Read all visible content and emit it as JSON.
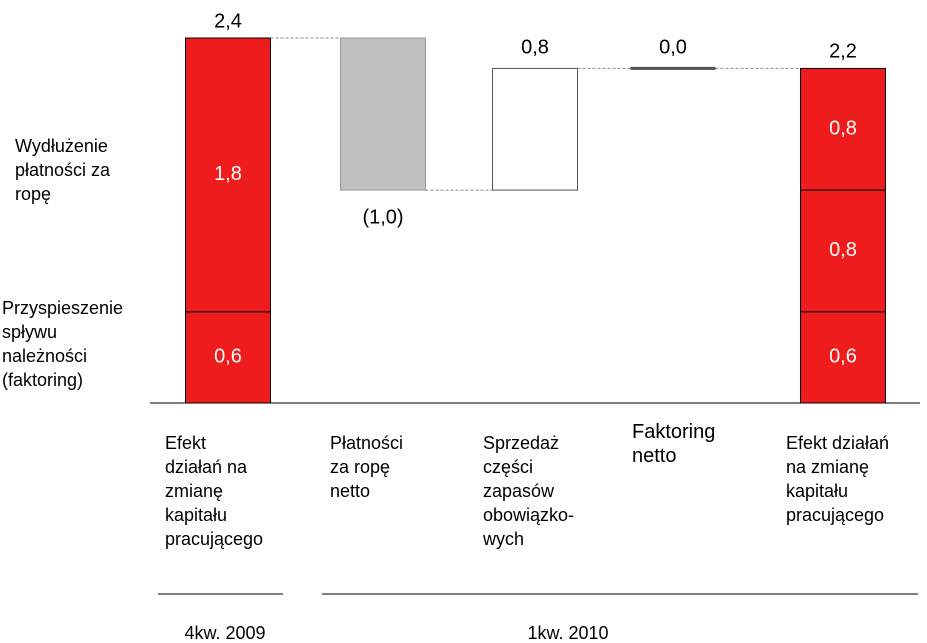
{
  "chart_data": {
    "type": "waterfall",
    "ylim": [
      0,
      2.4
    ],
    "segment_names": [
      "Przyspieszenie\nspływu\nnależności\n(faktoring)",
      "Wydłużenie\npłatności za\nropę"
    ],
    "bars": [
      {
        "category": "Efekt\ndziałań na\nzmianę\nkapitału\npracującego",
        "kind": "total",
        "color": "#ee1c1c",
        "segments": [
          0.6,
          1.8
        ],
        "segment_labels": [
          "0,6",
          "1,8"
        ],
        "total": 2.4,
        "total_label": "2,4"
      },
      {
        "category": "Płatności\nza ropę\nnetto",
        "kind": "delta",
        "color": "#c0c0c0",
        "value": -1.0,
        "value_label": "(1,0)"
      },
      {
        "category": "Sprzedaż\nczęści\nzapasów\nobowiązko-\nwych",
        "kind": "delta",
        "color": "#ffffff",
        "value": 0.8,
        "value_label": "0,8"
      },
      {
        "category": "Faktoring\nnetto",
        "kind": "delta",
        "color": "#555555",
        "value": 0.0,
        "value_label": "0,0"
      },
      {
        "category": "Efekt działań\nna zmianę\nkapitału\npracującego",
        "kind": "total",
        "color": "#ee1c1c",
        "segments": [
          0.6,
          0.8,
          0.8
        ],
        "segment_labels": [
          "0,6",
          "0,8",
          "0,8"
        ],
        "total": 2.2,
        "total_label": "2,2"
      }
    ],
    "periods": [
      "4kw. 2009",
      "1kw. 2010"
    ]
  }
}
